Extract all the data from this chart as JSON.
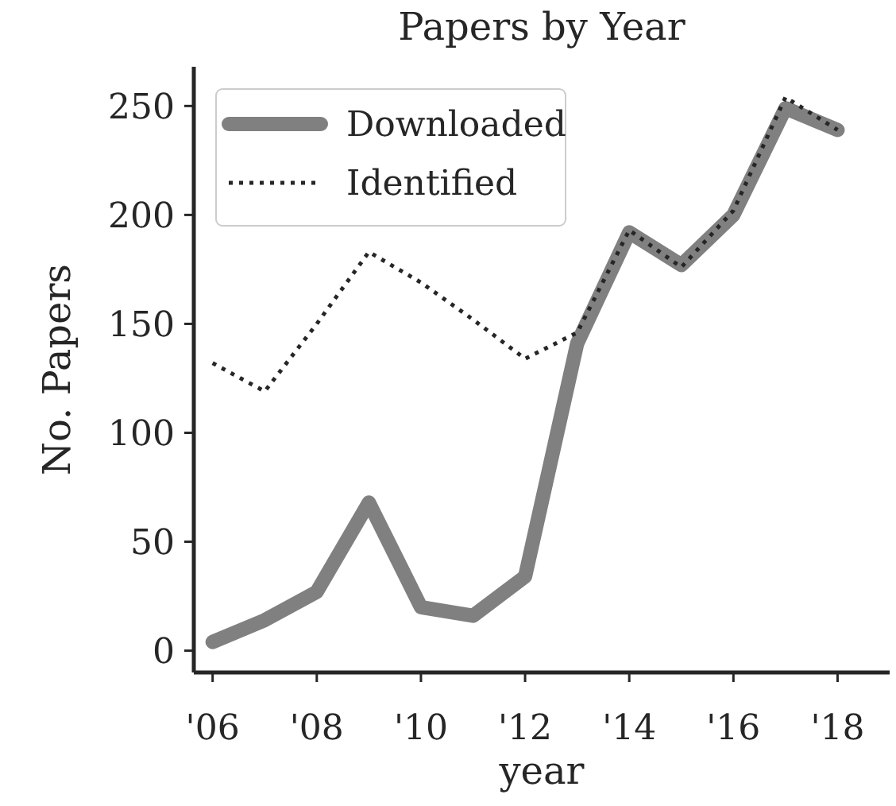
{
  "chart_data": {
    "type": "line",
    "title": "Papers by Year",
    "xlabel": "year",
    "ylabel": "No. Papers",
    "x": [
      2006,
      2007,
      2008,
      2009,
      2010,
      2011,
      2012,
      2013,
      2014,
      2015,
      2016,
      2017,
      2018
    ],
    "series": [
      {
        "name": "Downloaded",
        "color": "#808080",
        "line_style": "solid",
        "values": [
          4,
          14,
          27,
          68,
          20,
          16,
          34,
          141,
          192,
          177,
          200,
          249,
          239
        ]
      },
      {
        "name": "Identified",
        "color": "#262626",
        "line_style": "dotted",
        "values": [
          132,
          119,
          150,
          183,
          169,
          152,
          134,
          146,
          193,
          176,
          202,
          254,
          239
        ]
      }
    ],
    "xlim": [
      2005.7,
      2019
    ],
    "xticks": [
      {
        "value": 2006,
        "label": "'06"
      },
      {
        "value": 2008,
        "label": "'08"
      },
      {
        "value": 2010,
        "label": "'10"
      },
      {
        "value": 2012,
        "label": "'12"
      },
      {
        "value": 2014,
        "label": "'14"
      },
      {
        "value": 2016,
        "label": "'16"
      },
      {
        "value": 2018,
        "label": "'18"
      }
    ],
    "ylim": [
      -10,
      268
    ],
    "yticks": [
      0,
      50,
      100,
      150,
      200,
      250
    ],
    "grid": false,
    "legend": "top left",
    "marker": "none"
  }
}
